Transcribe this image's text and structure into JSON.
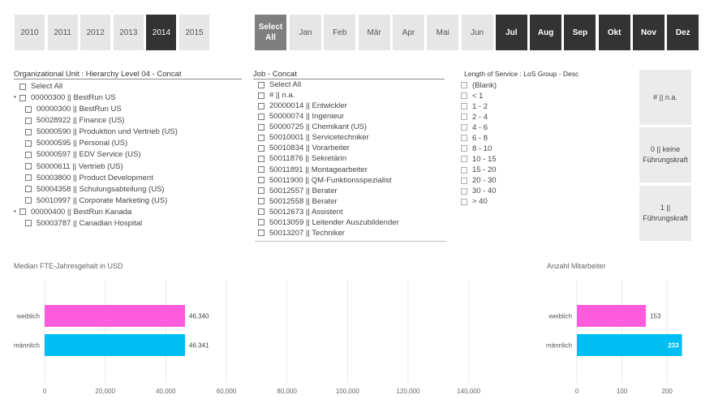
{
  "years": [
    {
      "label": "2010",
      "selected": false
    },
    {
      "label": "2011",
      "selected": false
    },
    {
      "label": "2012",
      "selected": false
    },
    {
      "label": "2013",
      "selected": false
    },
    {
      "label": "2014",
      "selected": true
    },
    {
      "label": "2015",
      "selected": false
    }
  ],
  "months": {
    "select_all": "Select All",
    "items": [
      {
        "label": "Jan",
        "selected": false
      },
      {
        "label": "Feb",
        "selected": false
      },
      {
        "label": "Mär",
        "selected": false
      },
      {
        "label": "Apr",
        "selected": false
      },
      {
        "label": "Mai",
        "selected": false
      },
      {
        "label": "Jun",
        "selected": false
      },
      {
        "label": "Jul",
        "selected": true
      },
      {
        "label": "Aug",
        "selected": true
      },
      {
        "label": "Sep",
        "selected": true
      },
      {
        "label": "Okt",
        "selected": true
      },
      {
        "label": "Nov",
        "selected": true
      },
      {
        "label": "Dez",
        "selected": true
      }
    ]
  },
  "org": {
    "title": "Organizational Unit : Hierarchy Level 04 - Concat",
    "items": [
      {
        "label": "Select All",
        "level": 0,
        "bullet": false
      },
      {
        "label": "00000300 || BestRun US",
        "level": 0,
        "bullet": true
      },
      {
        "label": "00000300 || BestRun US",
        "level": 1,
        "bullet": false
      },
      {
        "label": "50028922 || Finance (US)",
        "level": 1,
        "bullet": false
      },
      {
        "label": "50000590 || Produktion und Vertrieb (US)",
        "level": 1,
        "bullet": false
      },
      {
        "label": "50000595 || Personal (US)",
        "level": 1,
        "bullet": false
      },
      {
        "label": "50000597 || EDV Service (US)",
        "level": 1,
        "bullet": false
      },
      {
        "label": "50000611 || Vertrieb (US)",
        "level": 1,
        "bullet": false
      },
      {
        "label": "50003800 || Product Development",
        "level": 1,
        "bullet": false
      },
      {
        "label": "50004358 || Schulungsabteilung (US)",
        "level": 1,
        "bullet": false
      },
      {
        "label": "50010997 || Corporate Marketing (US)",
        "level": 1,
        "bullet": false
      },
      {
        "label": "00000400 || BestRun Kanada",
        "level": 0,
        "bullet": true
      },
      {
        "label": "50003787 || Canadian Hospital",
        "level": 1,
        "bullet": false
      }
    ]
  },
  "job": {
    "title": "Job - Concat",
    "items": [
      "Select All",
      "# || n.a.",
      "20000014 || Entwickler",
      "50000074 || Ingenieur",
      "50000725 || Chemikant (US)",
      "50010001 || Servicetechniker",
      "50010834 || Vorarbeiter",
      "50011876 || Sekretärin",
      "50011891 || Montagearbeiter",
      "50011900 || QM-Funktionsspezialist",
      "50012557 || Berater",
      "50012558 || Berater",
      "50012673 || Assistent",
      "50013059 || Leitender Auszubildender",
      "50013207 || Techniker"
    ]
  },
  "los": {
    "title": "Length of Service : LoS Group - Desc",
    "items": [
      "(Blank)",
      "< 1",
      "1 - 2",
      "2 - 4",
      "4 - 6",
      "6 - 8",
      "8 - 10",
      "10 - 15",
      "15 - 20",
      "20 - 30",
      "30 - 40",
      "> 40"
    ]
  },
  "leader": {
    "items": [
      {
        "label": "# || n.a."
      },
      {
        "label": "0 || keine Führungskraft"
      },
      {
        "label": "1 || Führungskraft"
      }
    ]
  },
  "colors": {
    "weiblich": "#ff5cdd",
    "maennlich": "#00bdf2",
    "selected_tile": "#333333",
    "unselected_tile": "#e6e6e6"
  },
  "chart_data": [
    {
      "type": "bar",
      "orientation": "horizontal",
      "title": "Median FTE-Jahresgehalt in USD",
      "categories": [
        "weiblich",
        "männlich"
      ],
      "values": [
        46340,
        46341
      ],
      "value_labels": [
        "46.340",
        "46.341"
      ],
      "xlim": [
        0,
        150000
      ],
      "ticks": [
        0,
        20000,
        40000,
        60000,
        80000,
        100000,
        120000,
        140000
      ],
      "tick_labels": [
        "0",
        "20,000",
        "40,000",
        "60,000",
        "80,000",
        "100,000",
        "120,000",
        "140,000"
      ],
      "grid": true
    },
    {
      "type": "bar",
      "orientation": "horizontal",
      "title": "Anzahl Mitarbeiter",
      "categories": [
        "weiblich",
        "männlich"
      ],
      "values": [
        153,
        233
      ],
      "value_labels": [
        "153",
        "233"
      ],
      "xlim": [
        0,
        250
      ],
      "ticks": [
        0,
        100,
        200
      ],
      "tick_labels": [
        "0",
        "100",
        "200"
      ],
      "grid": true
    }
  ]
}
